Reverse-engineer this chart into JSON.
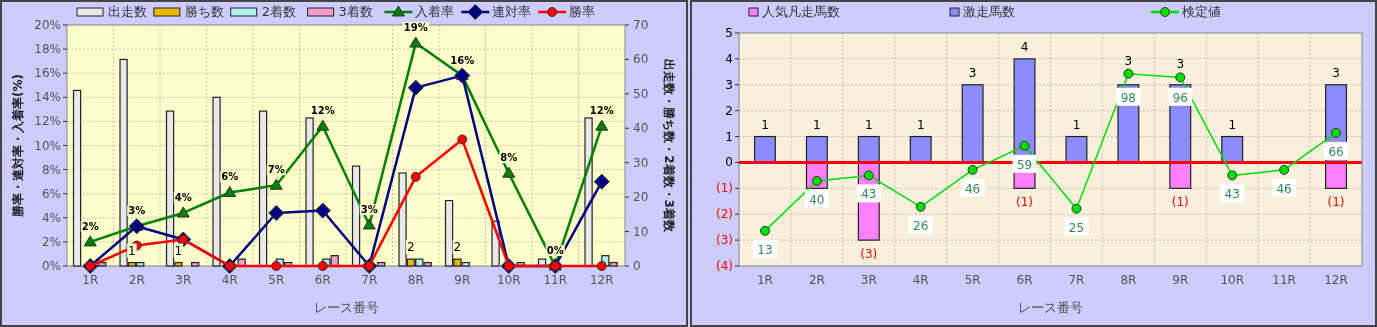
{
  "chart_data": [
    {
      "type": "bar",
      "categories": [
        "1R",
        "2R",
        "3R",
        "4R",
        "5R",
        "6R",
        "7R",
        "8R",
        "9R",
        "10R",
        "11R",
        "12R"
      ],
      "xlabel": "レース番号",
      "ylabel": "勝率・連対率・入着率(%)",
      "y2label": "出走数・勝ち数・2着数・3着数",
      "ylim": [
        0,
        20
      ],
      "yticks": [
        {
          "value": 0,
          "label": "0%"
        },
        {
          "value": 2,
          "label": "2%"
        },
        {
          "value": 4,
          "label": "4%"
        },
        {
          "value": 6,
          "label": "6%"
        },
        {
          "value": 8,
          "label": "8%"
        },
        {
          "value": 10,
          "label": "10%"
        },
        {
          "value": 12,
          "label": "12%"
        },
        {
          "value": 14,
          "label": "14%"
        },
        {
          "value": 16,
          "label": "16%"
        },
        {
          "value": 18,
          "label": "18%"
        },
        {
          "value": 20,
          "label": "20%"
        }
      ],
      "y2lim": [
        0,
        70
      ],
      "y2ticks": [
        0,
        10,
        20,
        30,
        40,
        50,
        60,
        70
      ],
      "grid": true,
      "legend": "top",
      "series": [
        {
          "name": "出走数",
          "type": "bar",
          "axis": "y2",
          "color": "#e8e8e8",
          "values": [
            51,
            60,
            45,
            49,
            45,
            43,
            29,
            27,
            19,
            13,
            2,
            43
          ]
        },
        {
          "name": "勝ち数",
          "type": "bar",
          "axis": "y2",
          "color": "#e6b800",
          "values": [
            0,
            1,
            1,
            0,
            0,
            0,
            0,
            2,
            2,
            0,
            0,
            0
          ],
          "value_labels": [
            null,
            "1",
            "1",
            null,
            null,
            null,
            null,
            "2",
            "2",
            null,
            null,
            null
          ]
        },
        {
          "name": "2着数",
          "type": "bar",
          "axis": "y2",
          "color": "#b0f0f0",
          "values": [
            0,
            1,
            0,
            0,
            2,
            2,
            0,
            2,
            1,
            0,
            0,
            3
          ]
        },
        {
          "name": "3着数",
          "type": "bar",
          "axis": "y2",
          "color": "#f0a0c8",
          "values": [
            1,
            0,
            1,
            2,
            1,
            3,
            1,
            1,
            0,
            1,
            0,
            1
          ]
        },
        {
          "name": "入着率",
          "type": "line",
          "axis": "y",
          "color": "#008000",
          "marker": "triangle",
          "values": [
            2.0,
            3.3,
            4.4,
            6.1,
            6.7,
            11.6,
            3.4,
            18.5,
            15.8,
            7.7,
            0,
            11.6
          ],
          "value_labels": [
            "2%",
            "3%",
            "4%",
            "6%",
            "7%",
            "12%",
            "3%",
            "19%",
            "16%",
            "8%",
            "0%",
            "12%"
          ]
        },
        {
          "name": "連対率",
          "type": "line",
          "axis": "y",
          "color": "#000080",
          "marker": "diamond",
          "values": [
            0,
            3.3,
            2.2,
            0,
            4.4,
            4.6,
            0,
            14.8,
            15.8,
            0,
            0,
            7.0
          ]
        },
        {
          "name": "勝率",
          "type": "line",
          "axis": "y",
          "color": "#ff0000",
          "marker": "circle",
          "values": [
            0,
            1.7,
            2.2,
            0,
            0,
            0,
            0,
            7.4,
            10.5,
            0,
            0,
            0
          ]
        }
      ]
    },
    {
      "type": "bar",
      "stacked": true,
      "categories": [
        "1R",
        "2R",
        "3R",
        "4R",
        "5R",
        "6R",
        "7R",
        "8R",
        "9R",
        "10R",
        "11R",
        "12R"
      ],
      "xlabel": "レース番号",
      "ylim": [
        -4,
        5
      ],
      "yticks": [
        {
          "value": -4,
          "label": "(4)"
        },
        {
          "value": -3,
          "label": "(3)"
        },
        {
          "value": -2,
          "label": "(2)"
        },
        {
          "value": -1,
          "label": "(1)"
        },
        0,
        1,
        2,
        3,
        4,
        5
      ],
      "y2lim": [
        -6,
        120
      ],
      "grid": true,
      "legend": "top",
      "ref_lines": [
        {
          "axis": "y",
          "value": 0,
          "color": "#ff0000"
        }
      ],
      "series": [
        {
          "name": "人気凡走馬数",
          "type": "bar",
          "color": "#ff80ff",
          "values": [
            0,
            -1,
            -3,
            0,
            0,
            -1,
            0,
            0,
            -1,
            0,
            0,
            -1
          ],
          "value_labels": [
            null,
            null,
            "(3)",
            null,
            null,
            "(1)",
            null,
            null,
            "(1)",
            null,
            null,
            "(1)"
          ]
        },
        {
          "name": "激走馬数",
          "type": "bar",
          "color": "#8c8cff",
          "values": [
            1,
            1,
            1,
            1,
            3,
            4,
            1,
            3,
            3,
            1,
            0,
            3
          ],
          "value_labels": [
            "1",
            "1",
            "1",
            "1",
            "3",
            "4",
            "1",
            "3",
            "3",
            "1",
            null,
            "3"
          ]
        },
        {
          "name": "検定値",
          "type": "line",
          "axis": "y2",
          "color": "#00dd00",
          "marker": "circle",
          "values": [
            13,
            40,
            43,
            26,
            46,
            59,
            25,
            98,
            96,
            43,
            46,
            66
          ],
          "value_labels": [
            "13",
            "40",
            "43",
            "26",
            "46",
            "59",
            "25",
            "98",
            "96",
            "43",
            "46",
            "66"
          ]
        }
      ]
    }
  ]
}
